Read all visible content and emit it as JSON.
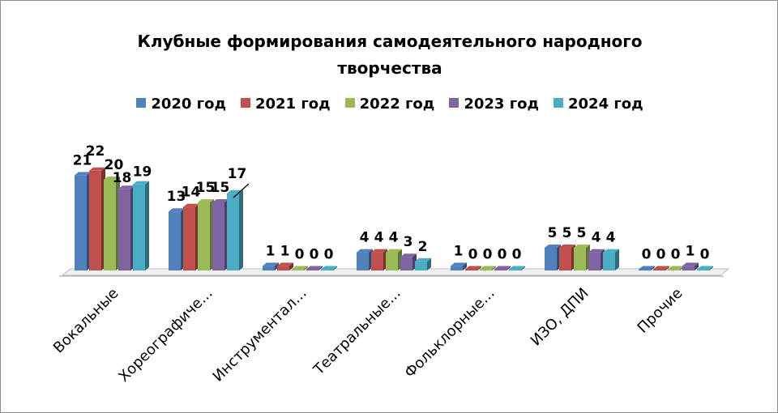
{
  "chart_data": {
    "type": "bar",
    "title": "Клубные формирования самодеятельного народного творчества",
    "categories": [
      "Вокальные",
      "Хореографиче...",
      "Инструментал...",
      "Театральные...",
      "Фольклорные...",
      "ИЗО, ДПИ",
      "Прочие"
    ],
    "series": [
      {
        "name": "2020 год",
        "color": "#4F81BD",
        "values": [
          21,
          13,
          1,
          4,
          1,
          5,
          0
        ]
      },
      {
        "name": "2021 год",
        "color": "#C0504D",
        "values": [
          22,
          14,
          1,
          4,
          0,
          5,
          0
        ]
      },
      {
        "name": "2022 год",
        "color": "#9BBB59",
        "values": [
          20,
          15,
          0,
          4,
          0,
          5,
          0
        ]
      },
      {
        "name": "2023 год",
        "color": "#8064A2",
        "values": [
          18,
          15,
          0,
          3,
          0,
          4,
          1
        ]
      },
      {
        "name": "2024 год",
        "color": "#4BACC6",
        "values": [
          19,
          17,
          0,
          2,
          0,
          4,
          0
        ]
      }
    ],
    "xlabel": "",
    "ylabel": "",
    "ylim": [
      0,
      22
    ],
    "grid": false,
    "legend": "top",
    "style": "3d-clustered-column",
    "data_labels": true
  }
}
